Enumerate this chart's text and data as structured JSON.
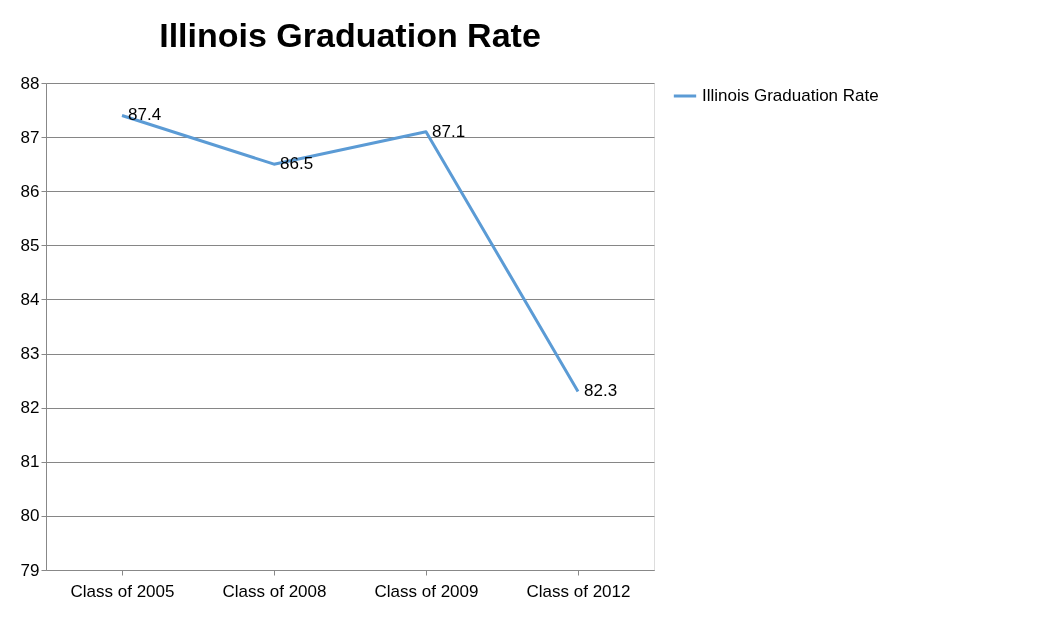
{
  "chart_data": {
    "type": "line",
    "title": "Illinois Graduation Rate",
    "categories": [
      "Class of 2005",
      "Class of 2008",
      "Class of 2009",
      "Class of 2012"
    ],
    "series": [
      {
        "name": "Illinois Graduation Rate",
        "color": "#5b9bd5",
        "values": [
          87.4,
          86.5,
          87.1,
          82.3
        ]
      }
    ],
    "ylim": [
      79,
      88
    ],
    "yticks": [
      79,
      80,
      81,
      82,
      83,
      84,
      85,
      86,
      87,
      88
    ],
    "grid": "y",
    "legend": "right",
    "data_labels": true
  }
}
